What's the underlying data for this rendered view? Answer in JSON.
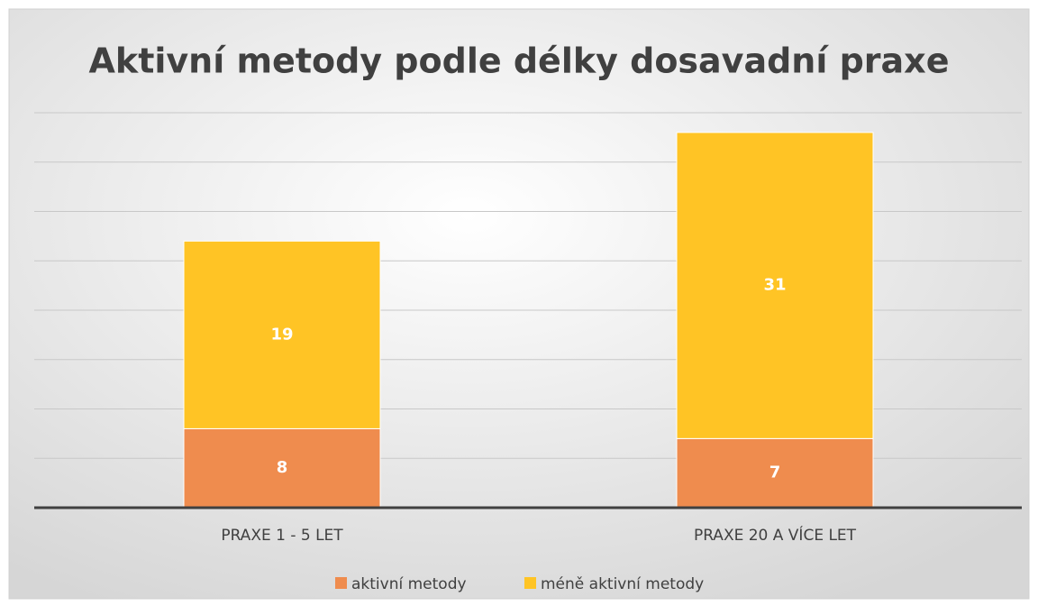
{
  "chart_data": {
    "type": "stacked_bar",
    "title": "Aktivní metody podle délky dosavadní praxe",
    "categories": [
      "PRAXE 1 - 5 LET",
      "PRAXE 20 A VÍCE LET"
    ],
    "series": [
      {
        "name": "aktivní metody",
        "color": "#ef8c4e",
        "values": [
          8,
          7
        ]
      },
      {
        "name": "méně aktivní metody",
        "color": "#ffc425",
        "values": [
          19,
          31
        ]
      }
    ],
    "ylim": [
      0,
      40
    ],
    "yticks": [
      0,
      5,
      10,
      15,
      20,
      25,
      30,
      35,
      40
    ],
    "grid": true,
    "legend": "bottom"
  }
}
